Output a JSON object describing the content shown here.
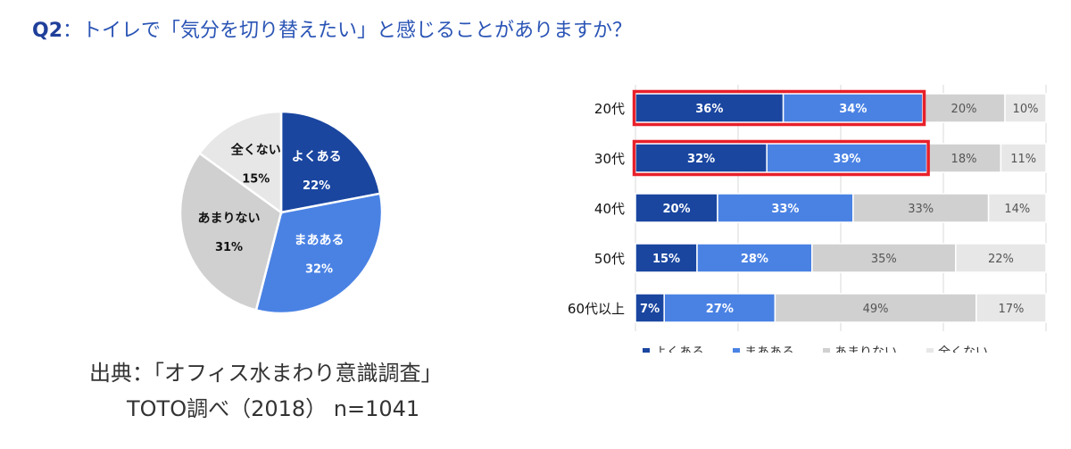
{
  "question": {
    "number": "Q2",
    "separator": "：",
    "text": "トイレで「気分を切り替えたい」と感じることがありますか？"
  },
  "source": {
    "line1": "出典：「オフィス水まわり意識調査」",
    "line2": "TOTO調べ（2018） n=1041"
  },
  "colors": {
    "yoku": "#1a46a0",
    "maa": "#4a82e4",
    "amari": "#d0d0d0",
    "zenku": "#e7e7e7",
    "highlight": "#e8202a"
  },
  "chart_data": [
    {
      "type": "pie",
      "slices": [
        {
          "label": "よくある",
          "value": 22,
          "value_label": "22%"
        },
        {
          "label": "まあある",
          "value": 32,
          "value_label": "32%"
        },
        {
          "label": "あまりない",
          "value": 31,
          "value_label": "31%"
        },
        {
          "label": "全くない",
          "value": 15,
          "value_label": "15%"
        }
      ]
    },
    {
      "type": "bar",
      "orientation": "horizontal",
      "stacked": "percent",
      "categories": [
        "20代",
        "30代",
        "40代",
        "50代",
        "60代以上"
      ],
      "series": [
        {
          "name": "よくある",
          "values": [
            36,
            32,
            20,
            15,
            7
          ],
          "labels": [
            "36%",
            "32%",
            "20%",
            "15%",
            "7%"
          ]
        },
        {
          "name": "まあある",
          "values": [
            34,
            39,
            33,
            28,
            27
          ],
          "labels": [
            "34%",
            "39%",
            "33%",
            "28%",
            "27%"
          ]
        },
        {
          "name": "あまりない",
          "values": [
            20,
            18,
            33,
            35,
            49
          ],
          "labels": [
            "20%",
            "18%",
            "33%",
            "35%",
            "49%"
          ]
        },
        {
          "name": "全くない",
          "values": [
            10,
            11,
            14,
            22,
            17
          ],
          "labels": [
            "10%",
            "11%",
            "14%",
            "22%",
            "17%"
          ]
        }
      ],
      "highlighted_categories": [
        "20代",
        "30代"
      ],
      "legend_position": "bottom",
      "grid": true
    }
  ]
}
